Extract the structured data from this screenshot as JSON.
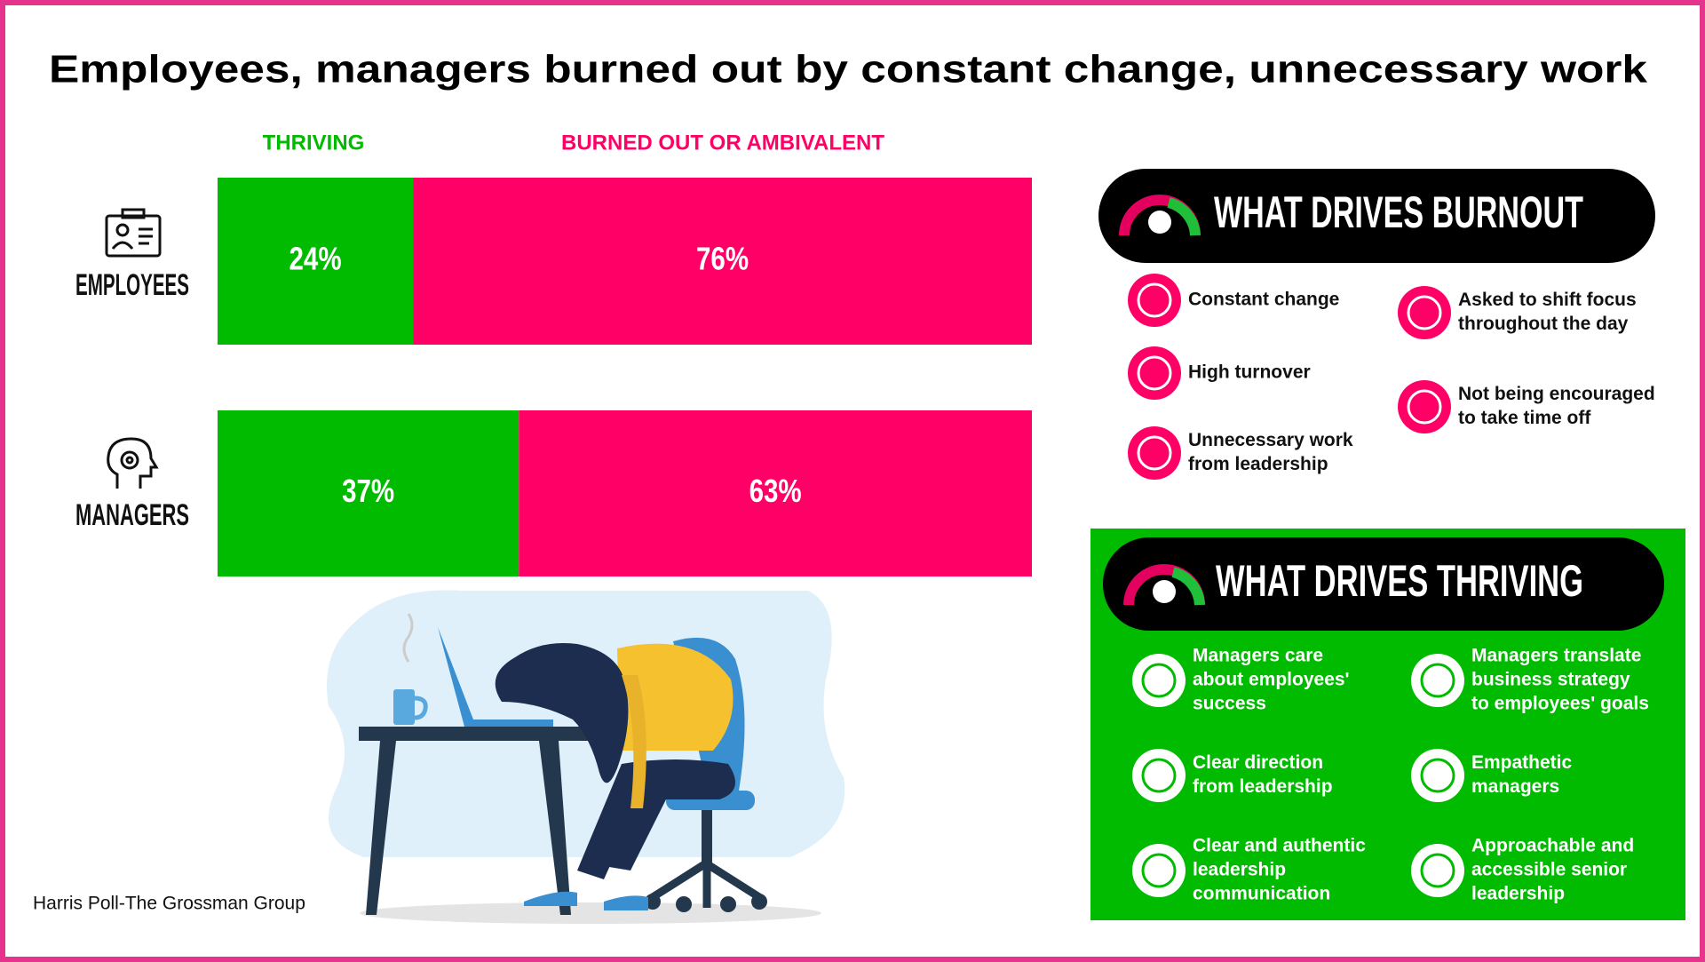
{
  "chart_data": {
    "type": "bar",
    "orientation": "horizontal",
    "stacked": true,
    "title": "Employees, managers burned out by constant change, unnecessary work",
    "categories": [
      "EMPLOYEES",
      "MANAGERS"
    ],
    "series": [
      {
        "name": "THRIVING",
        "color": "#00bb00",
        "values": [
          24,
          37
        ],
        "value_labels": [
          "24%",
          "37%"
        ]
      },
      {
        "name": "BURNED OUT OR AMBIVALENT",
        "color": "#ff0066",
        "values": [
          76,
          63
        ],
        "value_labels": [
          "76%",
          "63%"
        ]
      }
    ]
  },
  "source": "Harris Poll-The Grossman Group",
  "burnout": {
    "title": "WHAT DRIVES BURNOUT",
    "left": [
      [
        "Constant change"
      ],
      [
        "High turnover"
      ],
      [
        "Unnecessary work",
        "from leadership"
      ]
    ],
    "right": [
      [
        "Asked to shift focus",
        "throughout the day"
      ],
      [
        "Not being encouraged",
        "to take time off"
      ]
    ]
  },
  "thriving": {
    "title": "WHAT DRIVES THRIVING",
    "left": [
      [
        "Managers care",
        "about employees'",
        "success"
      ],
      [
        "Clear direction",
        "from leadership"
      ],
      [
        "Clear and authentic",
        "leadership",
        "communication"
      ]
    ],
    "right": [
      [
        "Managers translate",
        "business strategy",
        "to employees' goals"
      ],
      [
        "Empathetic",
        "managers"
      ],
      [
        "Approachable and",
        "accessible senior",
        "leadership"
      ]
    ]
  }
}
